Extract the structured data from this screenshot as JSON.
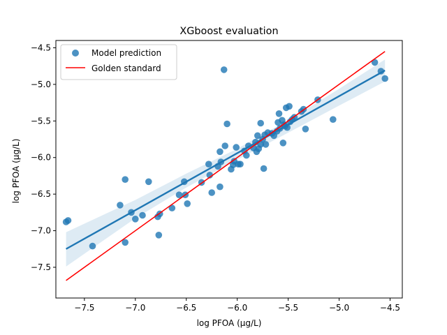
{
  "chart_data": {
    "type": "scatter",
    "title": "XGboost evaluation",
    "xlabel": "log PFOA (µg/L)",
    "ylabel": "log PFOA (µg/L)",
    "xlim": [
      -7.78,
      -4.38
    ],
    "ylim": [
      -7.92,
      -4.4
    ],
    "xticks": [
      -7.5,
      -7.0,
      -6.5,
      -6.0,
      -5.5,
      -5.0,
      -4.5
    ],
    "yticks": [
      -7.5,
      -7.0,
      -6.5,
      -6.0,
      -5.5,
      -5.0,
      -4.5
    ],
    "xtick_labels": [
      "−7.5",
      "−7.0",
      "−6.5",
      "−6.0",
      "−5.5",
      "−5.0",
      "−4.5"
    ],
    "ytick_labels": [
      "−7.5",
      "−7.0",
      "−6.5",
      "−6.0",
      "−5.5",
      "−5.0",
      "−4.5"
    ],
    "grid": false,
    "legend": {
      "position": "top-left",
      "entries": [
        {
          "label": "Model prediction",
          "marker": "circle",
          "color": "#1f77b4"
        },
        {
          "label": "Golden standard",
          "marker": "line",
          "color": "#ff0000"
        }
      ]
    },
    "series": [
      {
        "name": "Model prediction",
        "kind": "scatter",
        "color": "#1f77b4",
        "points": [
          [
            -7.68,
            -6.88
          ],
          [
            -7.66,
            -6.86
          ],
          [
            -7.42,
            -7.21
          ],
          [
            -7.15,
            -6.65
          ],
          [
            -7.1,
            -6.3
          ],
          [
            -7.1,
            -7.16
          ],
          [
            -7.04,
            -6.75
          ],
          [
            -7.0,
            -6.84
          ],
          [
            -6.93,
            -6.79
          ],
          [
            -6.87,
            -6.33
          ],
          [
            -6.78,
            -6.81
          ],
          [
            -6.77,
            -7.06
          ],
          [
            -6.76,
            -6.77
          ],
          [
            -6.64,
            -6.69
          ],
          [
            -6.57,
            -6.51
          ],
          [
            -6.52,
            -6.33
          ],
          [
            -6.51,
            -6.51
          ],
          [
            -6.49,
            -6.63
          ],
          [
            -6.35,
            -6.34
          ],
          [
            -6.28,
            -6.09
          ],
          [
            -6.27,
            -6.24
          ],
          [
            -6.25,
            -6.48
          ],
          [
            -6.19,
            -6.12
          ],
          [
            -6.17,
            -6.4
          ],
          [
            -6.17,
            -5.92
          ],
          [
            -6.16,
            -6.06
          ],
          [
            -6.13,
            -4.8
          ],
          [
            -6.12,
            -5.84
          ],
          [
            -6.1,
            -5.54
          ],
          [
            -6.06,
            -6.16
          ],
          [
            -6.04,
            -6.1
          ],
          [
            -6.03,
            -6.05
          ],
          [
            -6.01,
            -5.86
          ],
          [
            -5.99,
            -6.09
          ],
          [
            -5.97,
            -6.09
          ],
          [
            -5.93,
            -5.91
          ],
          [
            -5.91,
            -5.97
          ],
          [
            -5.89,
            -5.84
          ],
          [
            -5.84,
            -5.87
          ],
          [
            -5.82,
            -5.79
          ],
          [
            -5.81,
            -5.92
          ],
          [
            -5.8,
            -5.7
          ],
          [
            -5.79,
            -5.88
          ],
          [
            -5.77,
            -5.53
          ],
          [
            -5.77,
            -5.82
          ],
          [
            -5.75,
            -5.75
          ],
          [
            -5.74,
            -6.15
          ],
          [
            -5.73,
            -5.69
          ],
          [
            -5.72,
            -5.82
          ],
          [
            -5.7,
            -5.66
          ],
          [
            -5.66,
            -5.67
          ],
          [
            -5.64,
            -5.7
          ],
          [
            -5.61,
            -5.64
          ],
          [
            -5.6,
            -5.52
          ],
          [
            -5.59,
            -5.4
          ],
          [
            -5.58,
            -5.6
          ],
          [
            -5.56,
            -5.49
          ],
          [
            -5.55,
            -5.8
          ],
          [
            -5.54,
            -5.55
          ],
          [
            -5.53,
            -5.57
          ],
          [
            -5.52,
            -5.32
          ],
          [
            -5.51,
            -5.59
          ],
          [
            -5.49,
            -5.3
          ],
          [
            -5.48,
            -5.51
          ],
          [
            -5.46,
            -5.48
          ],
          [
            -5.44,
            -5.45
          ],
          [
            -5.37,
            -5.37
          ],
          [
            -5.35,
            -5.34
          ],
          [
            -5.33,
            -5.61
          ],
          [
            -5.21,
            -5.21
          ],
          [
            -5.06,
            -5.48
          ],
          [
            -4.65,
            -4.7
          ],
          [
            -4.59,
            -4.82
          ],
          [
            -4.55,
            -4.92
          ]
        ]
      },
      {
        "name": "Golden standard",
        "kind": "line",
        "color": "#ff0000",
        "points": [
          [
            -7.68,
            -7.68
          ],
          [
            -4.55,
            -4.55
          ]
        ]
      }
    ],
    "regression": {
      "color": "#1f77b4",
      "line": [
        [
          -7.68,
          -7.25
        ],
        [
          -4.55,
          -4.81
        ]
      ],
      "confidence_band": {
        "x": [
          -7.68,
          -7.0,
          -6.5,
          -6.0,
          -5.5,
          -5.0,
          -4.55
        ],
        "lower": [
          -7.49,
          -6.83,
          -6.41,
          -6.03,
          -5.66,
          -5.29,
          -4.96
        ],
        "upper": [
          -7.02,
          -6.58,
          -6.22,
          -5.88,
          -5.49,
          -5.06,
          -4.66
        ]
      }
    }
  }
}
